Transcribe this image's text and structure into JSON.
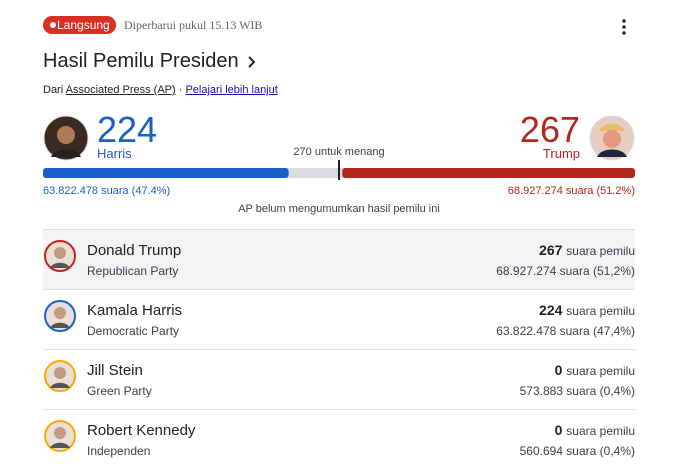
{
  "header": {
    "badge": "Langsung",
    "updated": "Diperbarui pukul 15.13 WIB",
    "title": "Hasil Pemilu Presiden",
    "source_prefix": "Dari",
    "source": "Associated Press (AP)",
    "separator": "·",
    "learn_more": "Pelajari lebih lanjut"
  },
  "summary": {
    "threshold": {
      "value": 270,
      "label": "270 untuk menang"
    },
    "candidates": [
      {
        "name": "Harris",
        "electoral_votes": 224,
        "popular_votes": "63.822.478 suara (47.4%)",
        "color": "#1a5fc8"
      },
      {
        "name": "Trump",
        "electoral_votes": 267,
        "popular_votes": "68.927.274 suara (51.2%)",
        "color": "#b3261e"
      }
    ],
    "note": "AP belum mengumumkan hasil pemilu ini"
  },
  "results": {
    "unit": "suara pemilu",
    "rows": [
      {
        "name": "Donald Trump",
        "party": "Republican Party",
        "electoral_votes": 267,
        "popular_votes": "68.927.274 suara (51,2%)",
        "color": "#c5221f"
      },
      {
        "name": "Kamala Harris",
        "party": "Democratic Party",
        "electoral_votes": 224,
        "popular_votes": "63.822.478 suara (47,4%)",
        "color": "#1a5fc8"
      },
      {
        "name": "Jill Stein",
        "party": "Green Party",
        "electoral_votes": 0,
        "popular_votes": "573.883 suara (0,4%)",
        "color": "#f9ab00"
      },
      {
        "name": "Robert Kennedy",
        "party": "Independen",
        "electoral_votes": 0,
        "popular_votes": "560.694 suara (0,4%)",
        "color": "#f9ab00"
      }
    ]
  }
}
